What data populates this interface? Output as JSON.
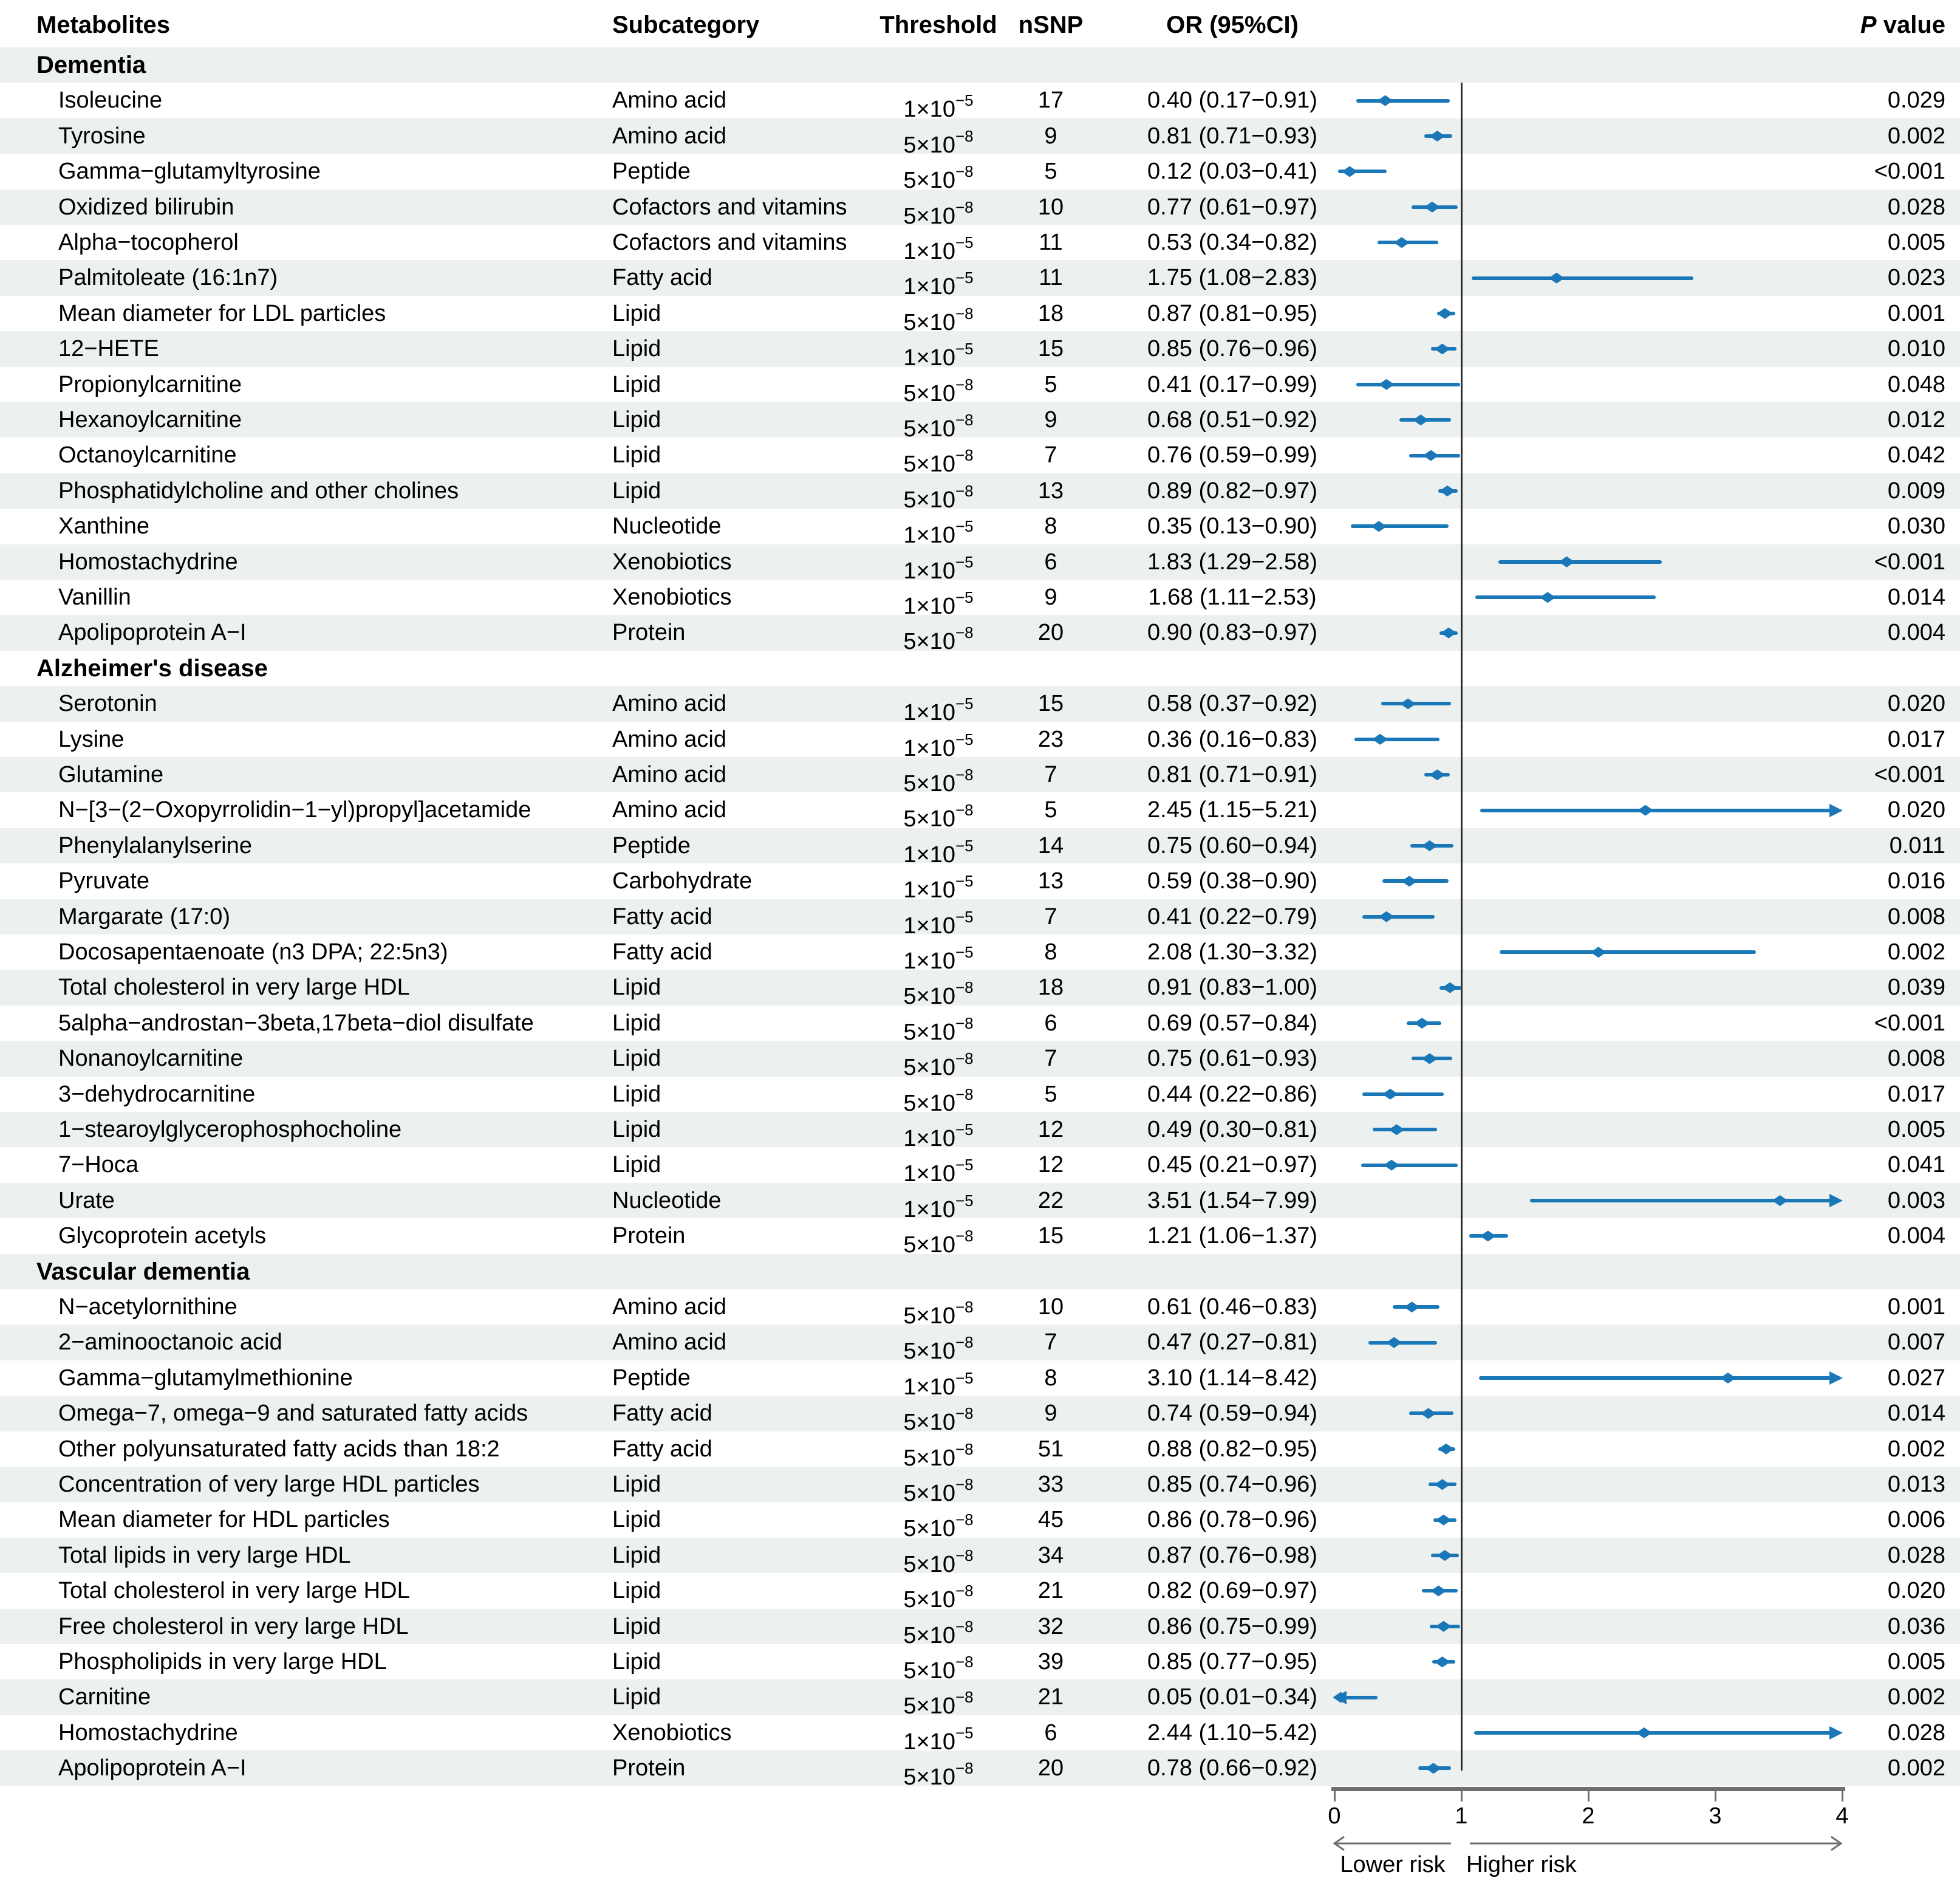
{
  "figure": {
    "colors": {
      "blue": "#1a77b8",
      "stripe": "#ecf0ee",
      "reference_line": "#2f2f2f",
      "axis_gray": "#6e6e6e",
      "text": "#000000"
    }
  },
  "chart_data": {
    "type": "forest",
    "title": "",
    "columns": {
      "metabolites": "Metabolites",
      "subcategory": "Subcategory",
      "threshold": "Threshold",
      "nsnp": "nSNP",
      "or_ci": "OR (95%CI)",
      "p_italic": "P",
      "p_rest": " value"
    },
    "xlim": [
      0,
      4
    ],
    "x_ticks": [
      "0",
      "1",
      "2",
      "3",
      "4"
    ],
    "reference_line": 1,
    "legend": {
      "lower": "Lower risk",
      "higher": "Higher risk"
    },
    "sections": [
      {
        "title": "Dementia",
        "rows": [
          {
            "metabolite": "Isoleucine",
            "subcategory": "Amino acid",
            "th_base": "1×10",
            "th_exp": "−5",
            "nsnp": "17",
            "or_text": "0.40 (0.17−0.91)",
            "or": 0.4,
            "lo": 0.17,
            "hi": 0.91,
            "p": "0.029"
          },
          {
            "metabolite": "Tyrosine",
            "subcategory": "Amino acid",
            "th_base": "5×10",
            "th_exp": "−8",
            "nsnp": "9",
            "or_text": "0.81 (0.71−0.93)",
            "or": 0.81,
            "lo": 0.71,
            "hi": 0.93,
            "p": "0.002"
          },
          {
            "metabolite": "Gamma−glutamyltyrosine",
            "subcategory": "Peptide",
            "th_base": "5×10",
            "th_exp": "−8",
            "nsnp": "5",
            "or_text": "0.12 (0.03−0.41)",
            "or": 0.12,
            "lo": 0.03,
            "hi": 0.41,
            "p": "<0.001"
          },
          {
            "metabolite": "Oxidized bilirubin",
            "subcategory": "Cofactors and vitamins",
            "th_base": "5×10",
            "th_exp": "−8",
            "nsnp": "10",
            "or_text": "0.77 (0.61−0.97)",
            "or": 0.77,
            "lo": 0.61,
            "hi": 0.97,
            "p": "0.028"
          },
          {
            "metabolite": "Alpha−tocopherol",
            "subcategory": "Cofactors and vitamins",
            "th_base": "1×10",
            "th_exp": "−5",
            "nsnp": "11",
            "or_text": "0.53 (0.34−0.82)",
            "or": 0.53,
            "lo": 0.34,
            "hi": 0.82,
            "p": "0.005"
          },
          {
            "metabolite": "Palmitoleate (16:1n7)",
            "subcategory": "Fatty acid",
            "th_base": "1×10",
            "th_exp": "−5",
            "nsnp": "11",
            "or_text": "1.75 (1.08−2.83)",
            "or": 1.75,
            "lo": 1.08,
            "hi": 2.83,
            "p": "0.023"
          },
          {
            "metabolite": "Mean diameter for LDL particles",
            "subcategory": "Lipid",
            "th_base": "5×10",
            "th_exp": "−8",
            "nsnp": "18",
            "or_text": "0.87 (0.81−0.95)",
            "or": 0.87,
            "lo": 0.81,
            "hi": 0.95,
            "p": "0.001"
          },
          {
            "metabolite": "12−HETE",
            "subcategory": "Lipid",
            "th_base": "1×10",
            "th_exp": "−5",
            "nsnp": "15",
            "or_text": "0.85 (0.76−0.96)",
            "or": 0.85,
            "lo": 0.76,
            "hi": 0.96,
            "p": "0.010"
          },
          {
            "metabolite": "Propionylcarnitine",
            "subcategory": "Lipid",
            "th_base": "5×10",
            "th_exp": "−8",
            "nsnp": "5",
            "or_text": "0.41 (0.17−0.99)",
            "or": 0.41,
            "lo": 0.17,
            "hi": 0.99,
            "p": "0.048"
          },
          {
            "metabolite": "Hexanoylcarnitine",
            "subcategory": "Lipid",
            "th_base": "5×10",
            "th_exp": "−8",
            "nsnp": "9",
            "or_text": "0.68 (0.51−0.92)",
            "or": 0.68,
            "lo": 0.51,
            "hi": 0.92,
            "p": "0.012"
          },
          {
            "metabolite": "Octanoylcarnitine",
            "subcategory": "Lipid",
            "th_base": "5×10",
            "th_exp": "−8",
            "nsnp": "7",
            "or_text": "0.76 (0.59−0.99)",
            "or": 0.76,
            "lo": 0.59,
            "hi": 0.99,
            "p": "0.042"
          },
          {
            "metabolite": "Phosphatidylcholine and other cholines",
            "subcategory": "Lipid",
            "th_base": "5×10",
            "th_exp": "−8",
            "nsnp": "13",
            "or_text": "0.89 (0.82−0.97)",
            "or": 0.89,
            "lo": 0.82,
            "hi": 0.97,
            "p": "0.009"
          },
          {
            "metabolite": "Xanthine",
            "subcategory": "Nucleotide",
            "th_base": "1×10",
            "th_exp": "−5",
            "nsnp": "8",
            "or_text": "0.35 (0.13−0.90)",
            "or": 0.35,
            "lo": 0.13,
            "hi": 0.9,
            "p": "0.030"
          },
          {
            "metabolite": "Homostachydrine",
            "subcategory": "Xenobiotics",
            "th_base": "1×10",
            "th_exp": "−5",
            "nsnp": "6",
            "or_text": "1.83 (1.29−2.58)",
            "or": 1.83,
            "lo": 1.29,
            "hi": 2.58,
            "p": "<0.001"
          },
          {
            "metabolite": "Vanillin",
            "subcategory": "Xenobiotics",
            "th_base": "1×10",
            "th_exp": "−5",
            "nsnp": "9",
            "or_text": "1.68 (1.11−2.53)",
            "or": 1.68,
            "lo": 1.11,
            "hi": 2.53,
            "p": "0.014"
          },
          {
            "metabolite": "Apolipoprotein A−I",
            "subcategory": "Protein",
            "th_base": "5×10",
            "th_exp": "−8",
            "nsnp": "20",
            "or_text": "0.90 (0.83−0.97)",
            "or": 0.9,
            "lo": 0.83,
            "hi": 0.97,
            "p": "0.004"
          }
        ]
      },
      {
        "title": "Alzheimer's disease",
        "rows": [
          {
            "metabolite": "Serotonin",
            "subcategory": "Amino acid",
            "th_base": "1×10",
            "th_exp": "−5",
            "nsnp": "15",
            "or_text": "0.58 (0.37−0.92)",
            "or": 0.58,
            "lo": 0.37,
            "hi": 0.92,
            "p": "0.020"
          },
          {
            "metabolite": "Lysine",
            "subcategory": "Amino acid",
            "th_base": "1×10",
            "th_exp": "−5",
            "nsnp": "23",
            "or_text": "0.36 (0.16−0.83)",
            "or": 0.36,
            "lo": 0.16,
            "hi": 0.83,
            "p": "0.017"
          },
          {
            "metabolite": "Glutamine",
            "subcategory": "Amino acid",
            "th_base": "5×10",
            "th_exp": "−8",
            "nsnp": "7",
            "or_text": "0.81 (0.71−0.91)",
            "or": 0.81,
            "lo": 0.71,
            "hi": 0.91,
            "p": "<0.001"
          },
          {
            "metabolite": "N−[3−(2−Oxopyrrolidin−1−yl)propyl]acetamide",
            "subcategory": "Amino acid",
            "th_base": "5×10",
            "th_exp": "−8",
            "nsnp": "5",
            "or_text": "2.45 (1.15−5.21)",
            "or": 2.45,
            "lo": 1.15,
            "hi": 5.21,
            "p": "0.020"
          },
          {
            "metabolite": "Phenylalanylserine",
            "subcategory": "Peptide",
            "th_base": "1×10",
            "th_exp": "−5",
            "nsnp": "14",
            "or_text": "0.75 (0.60−0.94)",
            "or": 0.75,
            "lo": 0.6,
            "hi": 0.94,
            "p": "0.011"
          },
          {
            "metabolite": "Pyruvate",
            "subcategory": "Carbohydrate",
            "th_base": "1×10",
            "th_exp": "−5",
            "nsnp": "13",
            "or_text": "0.59 (0.38−0.90)",
            "or": 0.59,
            "lo": 0.38,
            "hi": 0.9,
            "p": "0.016"
          },
          {
            "metabolite": "Margarate (17:0)",
            "subcategory": "Fatty acid",
            "th_base": "1×10",
            "th_exp": "−5",
            "nsnp": "7",
            "or_text": "0.41 (0.22−0.79)",
            "or": 0.41,
            "lo": 0.22,
            "hi": 0.79,
            "p": "0.008"
          },
          {
            "metabolite": "Docosapentaenoate (n3 DPA; 22:5n3)",
            "subcategory": "Fatty acid",
            "th_base": "1×10",
            "th_exp": "−5",
            "nsnp": "8",
            "or_text": "2.08 (1.30−3.32)",
            "or": 2.08,
            "lo": 1.3,
            "hi": 3.32,
            "p": "0.002"
          },
          {
            "metabolite": "Total cholesterol in very large HDL",
            "subcategory": "Lipid",
            "th_base": "5×10",
            "th_exp": "−8",
            "nsnp": "18",
            "or_text": "0.91 (0.83−1.00)",
            "or": 0.91,
            "lo": 0.83,
            "hi": 1.0,
            "p": "0.039"
          },
          {
            "metabolite": "5alpha−androstan−3beta,17beta−diol disulfate",
            "subcategory": "Lipid",
            "th_base": "5×10",
            "th_exp": "−8",
            "nsnp": "6",
            "or_text": "0.69 (0.57−0.84)",
            "or": 0.69,
            "lo": 0.57,
            "hi": 0.84,
            "p": "<0.001"
          },
          {
            "metabolite": "Nonanoylcarnitine",
            "subcategory": "Lipid",
            "th_base": "5×10",
            "th_exp": "−8",
            "nsnp": "7",
            "or_text": "0.75 (0.61−0.93)",
            "or": 0.75,
            "lo": 0.61,
            "hi": 0.93,
            "p": "0.008"
          },
          {
            "metabolite": "3−dehydrocarnitine",
            "subcategory": "Lipid",
            "th_base": "5×10",
            "th_exp": "−8",
            "nsnp": "5",
            "or_text": "0.44 (0.22−0.86)",
            "or": 0.44,
            "lo": 0.22,
            "hi": 0.86,
            "p": "0.017"
          },
          {
            "metabolite": "1−stearoylglycerophosphocholine",
            "subcategory": "Lipid",
            "th_base": "1×10",
            "th_exp": "−5",
            "nsnp": "12",
            "or_text": "0.49 (0.30−0.81)",
            "or": 0.49,
            "lo": 0.3,
            "hi": 0.81,
            "p": "0.005"
          },
          {
            "metabolite": "7−Hoca",
            "subcategory": "Lipid",
            "th_base": "1×10",
            "th_exp": "−5",
            "nsnp": "12",
            "or_text": "0.45 (0.21−0.97)",
            "or": 0.45,
            "lo": 0.21,
            "hi": 0.97,
            "p": "0.041"
          },
          {
            "metabolite": "Urate",
            "subcategory": "Nucleotide",
            "th_base": "1×10",
            "th_exp": "−5",
            "nsnp": "22",
            "or_text": "3.51 (1.54−7.99)",
            "or": 3.51,
            "lo": 1.54,
            "hi": 7.99,
            "p": "0.003"
          },
          {
            "metabolite": "Glycoprotein acetyls",
            "subcategory": "Protein",
            "th_base": "5×10",
            "th_exp": "−8",
            "nsnp": "15",
            "or_text": "1.21 (1.06−1.37)",
            "or": 1.21,
            "lo": 1.06,
            "hi": 1.37,
            "p": "0.004"
          }
        ]
      },
      {
        "title": "Vascular dementia",
        "rows": [
          {
            "metabolite": "N−acetylornithine",
            "subcategory": "Amino acid",
            "th_base": "5×10",
            "th_exp": "−8",
            "nsnp": "10",
            "or_text": "0.61 (0.46−0.83)",
            "or": 0.61,
            "lo": 0.46,
            "hi": 0.83,
            "p": "0.001"
          },
          {
            "metabolite": "2−aminooctanoic acid",
            "subcategory": "Amino acid",
            "th_base": "5×10",
            "th_exp": "−8",
            "nsnp": "7",
            "or_text": "0.47 (0.27−0.81)",
            "or": 0.47,
            "lo": 0.27,
            "hi": 0.81,
            "p": "0.007"
          },
          {
            "metabolite": "Gamma−glutamylmethionine",
            "subcategory": "Peptide",
            "th_base": "1×10",
            "th_exp": "−5",
            "nsnp": "8",
            "or_text": "3.10 (1.14−8.42)",
            "or": 3.1,
            "lo": 1.14,
            "hi": 8.42,
            "p": "0.027"
          },
          {
            "metabolite": "Omega−7, omega−9 and saturated fatty acids",
            "subcategory": "Fatty acid",
            "th_base": "5×10",
            "th_exp": "−8",
            "nsnp": "9",
            "or_text": "0.74 (0.59−0.94)",
            "or": 0.74,
            "lo": 0.59,
            "hi": 0.94,
            "p": "0.014"
          },
          {
            "metabolite": "Other polyunsaturated fatty acids than 18:2",
            "subcategory": "Fatty acid",
            "th_base": "5×10",
            "th_exp": "−8",
            "nsnp": "51",
            "or_text": "0.88 (0.82−0.95)",
            "or": 0.88,
            "lo": 0.82,
            "hi": 0.95,
            "p": "0.002"
          },
          {
            "metabolite": "Concentration of very large HDL particles",
            "subcategory": "Lipid",
            "th_base": "5×10",
            "th_exp": "−8",
            "nsnp": "33",
            "or_text": "0.85 (0.74−0.96)",
            "or": 0.85,
            "lo": 0.74,
            "hi": 0.96,
            "p": "0.013"
          },
          {
            "metabolite": "Mean diameter for HDL particles",
            "subcategory": "Lipid",
            "th_base": "5×10",
            "th_exp": "−8",
            "nsnp": "45",
            "or_text": "0.86 (0.78−0.96)",
            "or": 0.86,
            "lo": 0.78,
            "hi": 0.96,
            "p": "0.006"
          },
          {
            "metabolite": "Total lipids in very large HDL",
            "subcategory": "Lipid",
            "th_base": "5×10",
            "th_exp": "−8",
            "nsnp": "34",
            "or_text": "0.87 (0.76−0.98)",
            "or": 0.87,
            "lo": 0.76,
            "hi": 0.98,
            "p": "0.028"
          },
          {
            "metabolite": "Total cholesterol in very large HDL",
            "subcategory": "Lipid",
            "th_base": "5×10",
            "th_exp": "−8",
            "nsnp": "21",
            "or_text": "0.82 (0.69−0.97)",
            "or": 0.82,
            "lo": 0.69,
            "hi": 0.97,
            "p": "0.020"
          },
          {
            "metabolite": "Free cholesterol in very large HDL",
            "subcategory": "Lipid",
            "th_base": "5×10",
            "th_exp": "−8",
            "nsnp": "32",
            "or_text": "0.86 (0.75−0.99)",
            "or": 0.86,
            "lo": 0.75,
            "hi": 0.99,
            "p": "0.036"
          },
          {
            "metabolite": "Phospholipids in very large HDL",
            "subcategory": "Lipid",
            "th_base": "5×10",
            "th_exp": "−8",
            "nsnp": "39",
            "or_text": "0.85 (0.77−0.95)",
            "or": 0.85,
            "lo": 0.77,
            "hi": 0.95,
            "p": "0.005"
          },
          {
            "metabolite": "Carnitine",
            "subcategory": "Lipid",
            "th_base": "5×10",
            "th_exp": "−8",
            "nsnp": "21",
            "or_text": "0.05 (0.01−0.34)",
            "or": 0.05,
            "lo": 0.01,
            "hi": 0.34,
            "p": "0.002"
          },
          {
            "metabolite": "Homostachydrine",
            "subcategory": "Xenobiotics",
            "th_base": "1×10",
            "th_exp": "−5",
            "nsnp": "6",
            "or_text": "2.44 (1.10−5.42)",
            "or": 2.44,
            "lo": 1.1,
            "hi": 5.42,
            "p": "0.028"
          },
          {
            "metabolite": "Apolipoprotein A−I",
            "subcategory": "Protein",
            "th_base": "5×10",
            "th_exp": "−8",
            "nsnp": "20",
            "or_text": "0.78 (0.66−0.92)",
            "or": 0.78,
            "lo": 0.66,
            "hi": 0.92,
            "p": "0.002"
          }
        ]
      }
    ]
  }
}
